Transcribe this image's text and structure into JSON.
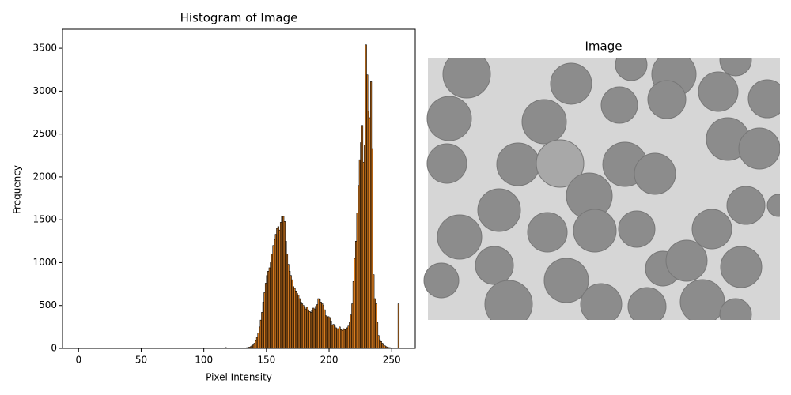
{
  "chart_data": {
    "type": "histogram",
    "title": "Histogram of Image",
    "xlabel": "Pixel Intensity",
    "ylabel": "Frequency",
    "image_title": "Image",
    "color": "#e08020",
    "edgecolor": "#000000",
    "xlim": [
      -12.8,
      268.8
    ],
    "ylim": [
      0,
      3722
    ],
    "xticks": [
      0,
      50,
      100,
      150,
      200,
      250
    ],
    "yticks": [
      0,
      500,
      1000,
      1500,
      2000,
      2500,
      3000,
      3500
    ],
    "bins": [
      0,
      1,
      2,
      3,
      4,
      5,
      6,
      7,
      8,
      9,
      10,
      11,
      12,
      13,
      14,
      15,
      16,
      17,
      18,
      19,
      20,
      21,
      22,
      23,
      24,
      25,
      26,
      27,
      28,
      29,
      30,
      31,
      32,
      33,
      34,
      35,
      36,
      37,
      38,
      39,
      40,
      41,
      42,
      43,
      44,
      45,
      46,
      47,
      48,
      49,
      50,
      51,
      52,
      53,
      54,
      55,
      56,
      57,
      58,
      59,
      60,
      61,
      62,
      63,
      64,
      65,
      66,
      67,
      68,
      69,
      70,
      71,
      72,
      73,
      74,
      75,
      76,
      77,
      78,
      79,
      80,
      81,
      82,
      83,
      84,
      85,
      86,
      87,
      88,
      89,
      90,
      91,
      92,
      93,
      94,
      95,
      96,
      97,
      98,
      99,
      100,
      101,
      102,
      103,
      104,
      105,
      106,
      107,
      108,
      109,
      110,
      111,
      112,
      113,
      114,
      115,
      116,
      117,
      118,
      119,
      120,
      121,
      122,
      123,
      124,
      125,
      126,
      127,
      128,
      129,
      130,
      131,
      132,
      133,
      134,
      135,
      136,
      137,
      138,
      139,
      140,
      141,
      142,
      143,
      144,
      145,
      146,
      147,
      148,
      149,
      150,
      151,
      152,
      153,
      154,
      155,
      156,
      157,
      158,
      159,
      160,
      161,
      162,
      163,
      164,
      165,
      166,
      167,
      168,
      169,
      170,
      171,
      172,
      173,
      174,
      175,
      176,
      177,
      178,
      179,
      180,
      181,
      182,
      183,
      184,
      185,
      186,
      187,
      188,
      189,
      190,
      191,
      192,
      193,
      194,
      195,
      196,
      197,
      198,
      199,
      200,
      201,
      202,
      203,
      204,
      205,
      206,
      207,
      208,
      209,
      210,
      211,
      212,
      213,
      214,
      215,
      216,
      217,
      218,
      219,
      220,
      221,
      222,
      223,
      224,
      225,
      226,
      227,
      228,
      229,
      230,
      231,
      232,
      233,
      234,
      235,
      236,
      237,
      238,
      239,
      240,
      241,
      242,
      243,
      244,
      245,
      246,
      247,
      248,
      249,
      250,
      251,
      252,
      253,
      254,
      255,
      256
    ],
    "values": [
      0,
      0,
      0,
      0,
      0,
      0,
      0,
      0,
      0,
      0,
      0,
      0,
      0,
      0,
      0,
      0,
      0,
      0,
      0,
      0,
      0,
      0,
      0,
      0,
      0,
      0,
      0,
      0,
      0,
      0,
      0,
      0,
      0,
      0,
      0,
      0,
      0,
      0,
      0,
      0,
      0,
      0,
      0,
      0,
      0,
      0,
      0,
      0,
      0,
      0,
      0,
      0,
      0,
      0,
      0,
      0,
      0,
      0,
      0,
      0,
      0,
      0,
      0,
      0,
      0,
      0,
      0,
      0,
      0,
      0,
      0,
      0,
      0,
      0,
      0,
      0,
      0,
      0,
      0,
      0,
      0,
      0,
      0,
      0,
      0,
      0,
      0,
      0,
      0,
      0,
      0,
      0,
      0,
      0,
      0,
      0,
      0,
      0,
      0,
      0,
      0,
      0,
      0,
      0,
      0,
      0,
      0,
      0,
      0,
      0,
      3,
      0,
      0,
      0,
      0,
      0,
      0,
      10,
      0,
      0,
      0,
      0,
      0,
      0,
      0,
      5,
      0,
      0,
      4,
      0,
      3,
      2,
      5,
      4,
      8,
      10,
      15,
      20,
      30,
      40,
      60,
      90,
      130,
      180,
      250,
      330,
      420,
      540,
      650,
      760,
      850,
      900,
      940,
      1000,
      1100,
      1200,
      1270,
      1330,
      1400,
      1420,
      1380,
      1470,
      1540,
      1540,
      1480,
      1250,
      1100,
      980,
      900,
      850,
      800,
      720,
      700,
      670,
      640,
      620,
      580,
      540,
      520,
      500,
      480,
      460,
      480,
      450,
      430,
      420,
      440,
      470,
      460,
      490,
      510,
      580,
      570,
      540,
      520,
      500,
      450,
      380,
      370,
      370,
      360,
      320,
      270,
      280,
      260,
      240,
      230,
      230,
      250,
      220,
      210,
      230,
      220,
      220,
      240,
      260,
      300,
      390,
      520,
      780,
      1050,
      1250,
      1580,
      1900,
      2200,
      2400,
      2600,
      2170,
      2370,
      3540,
      3190,
      2770,
      2690,
      3110,
      2330,
      860,
      580,
      520,
      300,
      150,
      100,
      80,
      60,
      40,
      30,
      20,
      15,
      10,
      8,
      5,
      3,
      2,
      0,
      0,
      0,
      520
    ]
  }
}
